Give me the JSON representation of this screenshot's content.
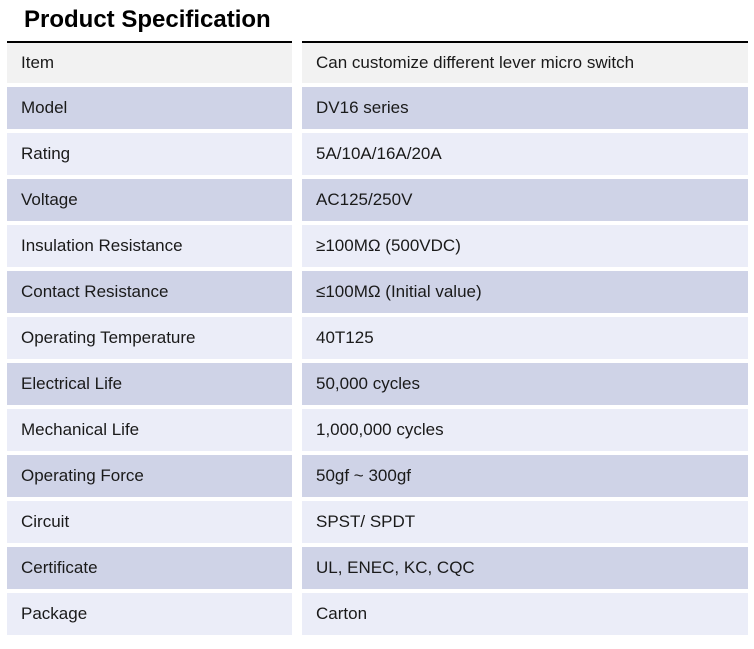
{
  "title": "Product Specification",
  "colors": {
    "header_row_bg": "#f2f2f2",
    "row_alt_dark": "#cfd3e7",
    "row_alt_light": "#ebedf8",
    "top_rule": "#000000",
    "text": "#1a1a1a"
  },
  "table": {
    "rows": [
      {
        "label": "Item",
        "value": "Can customize different lever micro switch",
        "bg": "gray"
      },
      {
        "label": "Model",
        "value": "DV16 series",
        "bg": "dark"
      },
      {
        "label": "Rating",
        "value": "5A/10A/16A/20A",
        "bg": "light"
      },
      {
        "label": "Voltage",
        "value": "AC125/250V",
        "bg": "dark"
      },
      {
        "label": "Insulation Resistance",
        "value": "≥100MΩ (500VDC)",
        "bg": "light"
      },
      {
        "label": "Contact Resistance",
        "value": "≤100MΩ (Initial value)",
        "bg": "dark"
      },
      {
        "label": "Operating Temperature",
        "value": "40T125",
        "bg": "light"
      },
      {
        "label": "Electrical Life",
        "value": "50,000 cycles",
        "bg": "dark"
      },
      {
        "label": "Mechanical Life",
        "value": "1,000,000 cycles",
        "bg": "light"
      },
      {
        "label": "Operating Force",
        "value": "50gf ~ 300gf",
        "bg": "dark"
      },
      {
        "label": "Circuit",
        "value": "SPST/ SPDT",
        "bg": "light"
      },
      {
        "label": "Certificate",
        "value": "UL, ENEC, KC, CQC",
        "bg": "dark"
      },
      {
        "label": "Package",
        "value": "Carton",
        "bg": "light"
      }
    ]
  }
}
